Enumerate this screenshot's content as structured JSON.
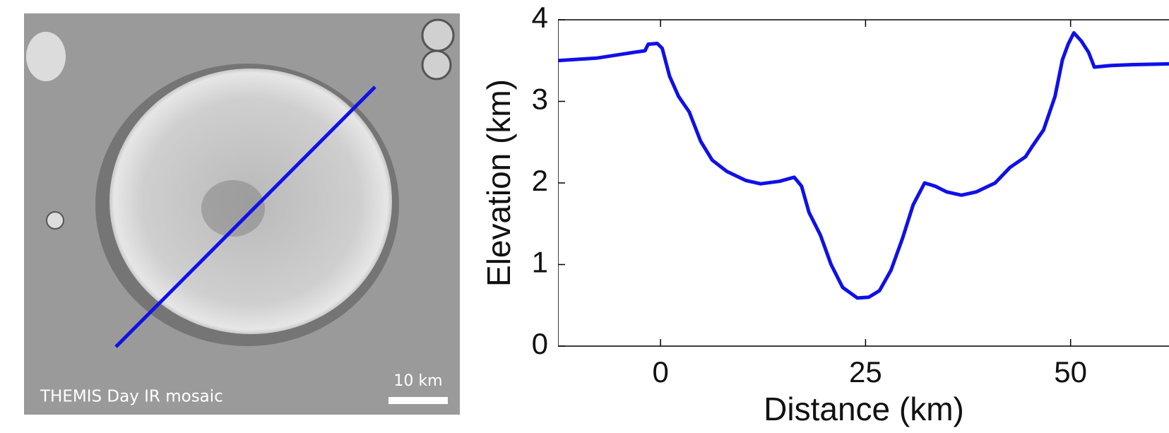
{
  "map": {
    "caption": "THEMIS Day IR mosaic",
    "scale_label": "10 km"
  },
  "chart_data": {
    "type": "line",
    "xlabel": "Distance (km)",
    "ylabel": "Elevation (km)",
    "x": [
      -12.5,
      -7.8,
      -3.3,
      -1.9,
      -1.5,
      -0.4,
      0.2,
      1.1,
      2.2,
      3.5,
      4.9,
      6.3,
      8.1,
      10.4,
      12.2,
      14.5,
      16.3,
      17.2,
      18.1,
      19.5,
      20.8,
      22.2,
      24.0,
      25.4,
      26.7,
      28.1,
      29.5,
      30.8,
      32.2,
      33.5,
      34.9,
      36.7,
      38.5,
      40.8,
      42.6,
      44.5,
      45.4,
      46.7,
      48.1,
      49.0,
      49.7,
      50.4,
      51.3,
      52.2,
      52.9,
      54.9,
      57.6,
      62.0
    ],
    "color": "#1010e8",
    "values": [
      3.5,
      3.53,
      3.6,
      3.62,
      3.7,
      3.71,
      3.65,
      3.31,
      3.06,
      2.87,
      2.51,
      2.28,
      2.14,
      2.03,
      1.99,
      2.02,
      2.07,
      1.96,
      1.64,
      1.36,
      1.0,
      0.72,
      0.59,
      0.6,
      0.68,
      0.93,
      1.32,
      1.73,
      2.0,
      1.96,
      1.89,
      1.85,
      1.89,
      2.0,
      2.19,
      2.32,
      2.46,
      2.65,
      3.06,
      3.51,
      3.7,
      3.84,
      3.74,
      3.6,
      3.42,
      3.44,
      3.45,
      3.46
    ],
    "xlim": [
      -12.5,
      62
    ],
    "ylim": [
      0,
      4
    ],
    "xticks": [
      0,
      25,
      50
    ],
    "yticks": [
      0,
      1,
      2,
      3,
      4
    ]
  }
}
